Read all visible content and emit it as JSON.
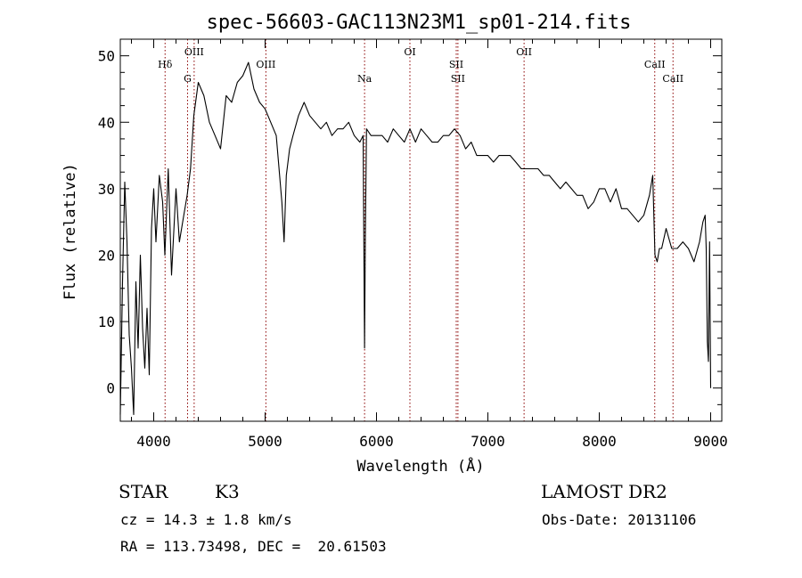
{
  "chart_data": {
    "type": "line",
    "title": "spec-56603-GAC113N23M1_sp01-214.fits",
    "xlabel": "Wavelength (Å)",
    "ylabel": "Flux (relative)",
    "xlim": [
      3700,
      9100
    ],
    "ylim": [
      -5,
      52.5
    ],
    "xticks": [
      4000,
      5000,
      6000,
      7000,
      8000,
      9000
    ],
    "yticks": [
      0,
      10,
      20,
      30,
      40,
      50
    ],
    "grid": false,
    "line_color": "#000000",
    "marker_color": "#8b0000",
    "series": [
      {
        "x": [
          3700,
          3720,
          3740,
          3760,
          3780,
          3800,
          3820,
          3840,
          3860,
          3880,
          3900,
          3920,
          3940,
          3960,
          3980,
          4000,
          4020,
          4050,
          4080,
          4100,
          4130,
          4160,
          4200,
          4230,
          4260,
          4300,
          4330,
          4360,
          4400,
          4450,
          4500,
          4550,
          4600,
          4650,
          4700,
          4750,
          4800,
          4850,
          4900,
          4950,
          5000,
          5050,
          5100,
          5150,
          5170,
          5190,
          5220,
          5250,
          5300,
          5350,
          5400,
          5450,
          5500,
          5550,
          5600,
          5650,
          5700,
          5750,
          5800,
          5850,
          5880,
          5893,
          5900,
          5910,
          5950,
          6000,
          6050,
          6100,
          6150,
          6200,
          6250,
          6300,
          6350,
          6400,
          6450,
          6500,
          6550,
          6600,
          6650,
          6700,
          6750,
          6800,
          6850,
          6900,
          6950,
          7000,
          7050,
          7100,
          7150,
          7200,
          7250,
          7300,
          7350,
          7400,
          7450,
          7500,
          7550,
          7600,
          7650,
          7700,
          7750,
          7800,
          7850,
          7900,
          7950,
          8000,
          8050,
          8100,
          8150,
          8200,
          8250,
          8300,
          8350,
          8400,
          8450,
          8480,
          8500,
          8520,
          8540,
          8560,
          8600,
          8650,
          8700,
          8750,
          8800,
          8850,
          8900,
          8930,
          8950,
          8960,
          8970,
          8980,
          8990,
          9000
        ],
        "y": [
          -4,
          16,
          31,
          22,
          8,
          3,
          -4,
          16,
          6,
          20,
          9,
          3,
          12,
          2,
          24,
          30,
          22,
          32,
          28,
          20,
          33,
          17,
          30,
          22,
          25,
          29,
          33,
          41,
          46,
          44,
          40,
          38,
          36,
          44,
          43,
          46,
          47,
          49,
          45,
          43,
          42,
          40,
          38,
          28,
          22,
          32,
          36,
          38,
          41,
          43,
          41,
          40,
          39,
          40,
          38,
          39,
          39,
          40,
          38,
          37,
          38,
          6,
          23,
          39,
          38,
          38,
          38,
          37,
          39,
          38,
          37,
          39,
          37,
          39,
          38,
          37,
          37,
          38,
          38,
          39,
          38,
          36,
          37,
          35,
          35,
          35,
          34,
          35,
          35,
          35,
          34,
          33,
          33,
          33,
          33,
          32,
          32,
          31,
          30,
          31,
          30,
          29,
          29,
          27,
          28,
          30,
          30,
          28,
          30,
          27,
          27,
          26,
          25,
          26,
          29,
          32,
          20,
          19,
          21,
          21,
          24,
          21,
          21,
          22,
          21,
          19,
          22,
          25,
          26,
          21,
          7,
          4,
          22,
          0
        ]
      }
    ],
    "lines": [
      {
        "label": "Hδ",
        "x": 4102
      },
      {
        "label": "G",
        "x": 4304
      },
      {
        "label": "OIII",
        "x": 4363
      },
      {
        "label": "OIII",
        "x": 5007
      },
      {
        "label": "Na",
        "x": 5893
      },
      {
        "label": "OI",
        "x": 6300
      },
      {
        "label": "SII",
        "x": 6716
      },
      {
        "label": "SII",
        "x": 6731
      },
      {
        "label": "OII",
        "x": 7325
      },
      {
        "label": "CaII",
        "x": 8498
      },
      {
        "label": "CaII",
        "x": 8662
      }
    ]
  },
  "info": {
    "object_class": "STAR",
    "subclass": "K3",
    "survey": "LAMOST DR2",
    "cz": "cz = 14.3 ± 1.8 km/s",
    "obs_date": "Obs-Date: 20131106",
    "coords": "RA = 113.73498, DEC =  20.61503"
  }
}
